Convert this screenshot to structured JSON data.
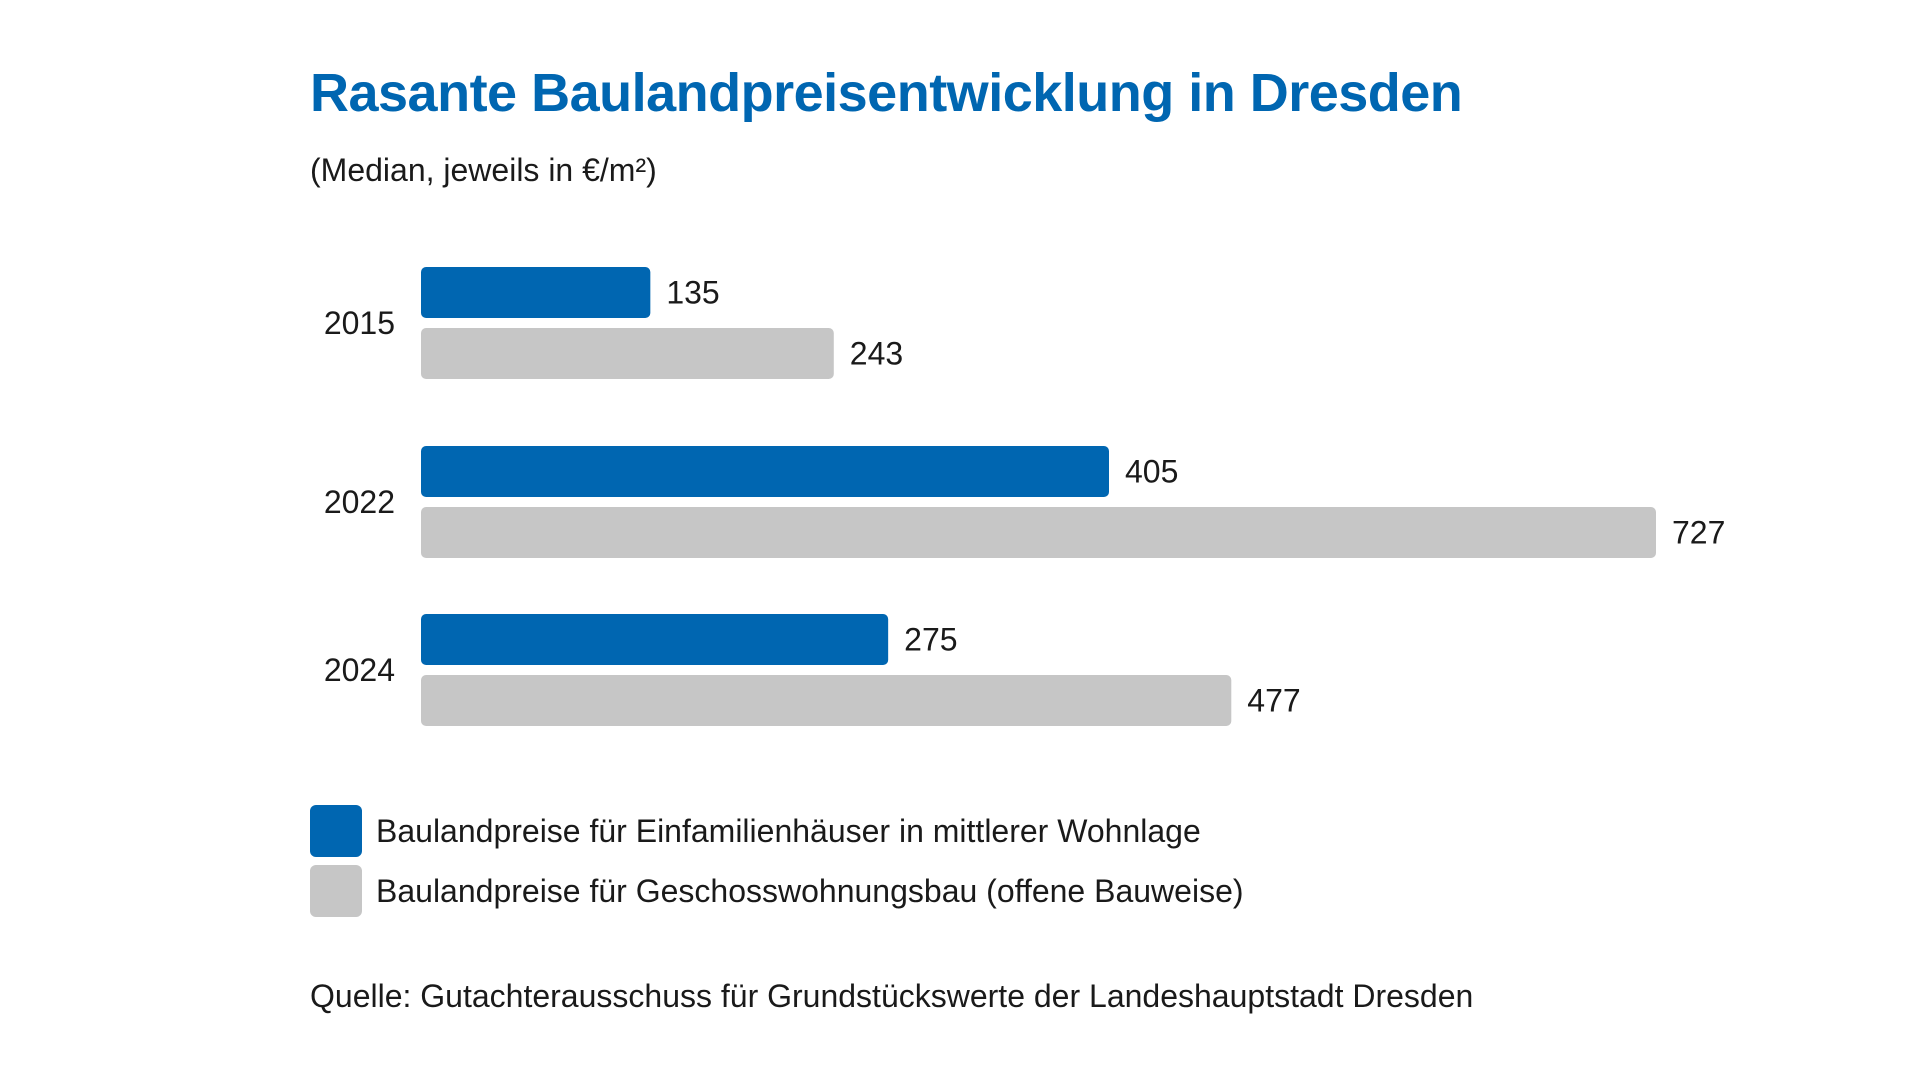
{
  "colors": {
    "title": "#0066b1",
    "series_1": "#0066b1",
    "series_2": "#c6c6c6",
    "text": "#1a1a1a"
  },
  "chart_data": {
    "type": "bar",
    "orientation": "horizontal",
    "title": "Rasante Baulandpreisentwicklung in Dresden",
    "subtitle": "(Median, jeweils in €/m²)",
    "categories": [
      "2015",
      "2022",
      "2024"
    ],
    "series": [
      {
        "name": "Baulandpreise für Einfamilienhäuser in mittlerer Wohnlage",
        "values": [
          135,
          405,
          275
        ],
        "value_labels": [
          "135",
          "405",
          "275"
        ]
      },
      {
        "name": "Baulandpreise für Geschosswohnungsbau (offene Bauweise)",
        "values": [
          243,
          727,
          477
        ],
        "value_labels": [
          "243",
          "727",
          "477"
        ]
      }
    ],
    "xlim": [
      0,
      727
    ],
    "grid": false,
    "legend_position": "bottom-left",
    "source": "Quelle: Gutachterausschuss für Grundstückswerte der Landeshauptstadt Dresden"
  }
}
